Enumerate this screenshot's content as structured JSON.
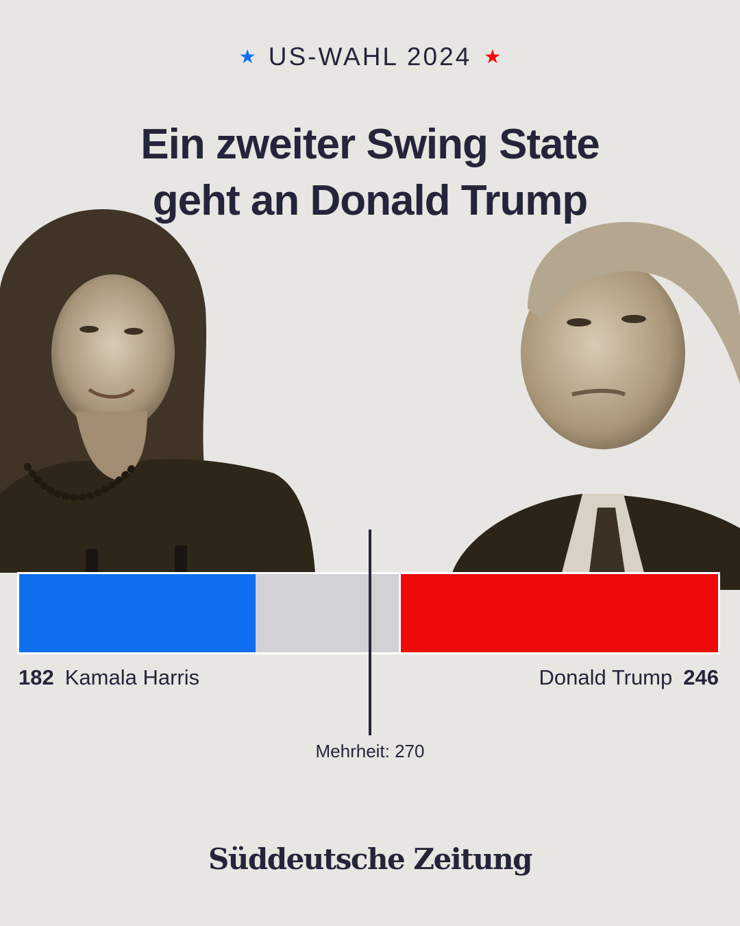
{
  "kicker": {
    "text": "US-WAHL 2024",
    "left_star": "★",
    "right_star": "★"
  },
  "headline": "Ein zweiter Swing State geht an Donald Trump",
  "portraits": {
    "left": "kamala-harris-photo",
    "right": "donald-trump-photo"
  },
  "colors": {
    "background": "#e8e6e2",
    "harris": "#0e6ff0",
    "trump": "#ef0a0a",
    "remaining": "#d1d1d6",
    "text": "#24253a"
  },
  "chart_data": {
    "type": "bar",
    "orientation": "horizontal-stacked",
    "total": 538,
    "series": [
      {
        "name": "Kamala Harris",
        "value": 182,
        "side": "left"
      },
      {
        "name": "Donald Trump",
        "value": 246,
        "side": "right"
      }
    ],
    "threshold": {
      "label": "Mehrheit: 270",
      "value": 270
    },
    "labels": {
      "harris_value": "182",
      "harris_name": "Kamala Harris",
      "trump_name": "Donald Trump",
      "trump_value": "246"
    }
  },
  "logo": "Süddeutsche Zeitung"
}
